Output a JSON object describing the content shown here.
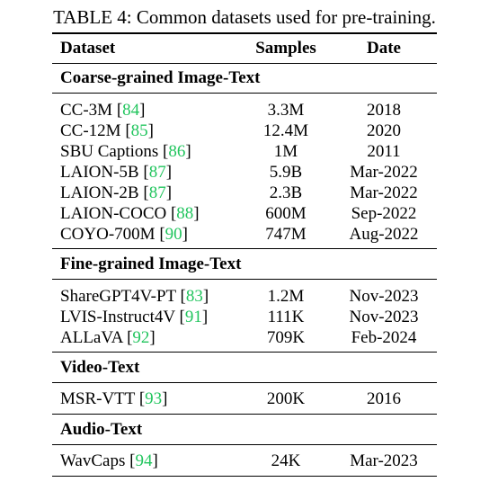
{
  "caption": "TABLE 4: Common datasets used for pre-training.",
  "headers": {
    "dataset": "Dataset",
    "samples": "Samples",
    "date": "Date"
  },
  "sections": [
    {
      "title": "Coarse-grained Image-Text",
      "rows": [
        {
          "name": "CC-3M",
          "ref": "84",
          "samples": "3.3M",
          "date": "2018"
        },
        {
          "name": "CC-12M",
          "ref": "85",
          "samples": "12.4M",
          "date": "2020"
        },
        {
          "name": "SBU Captions",
          "ref": "86",
          "samples": "1M",
          "date": "2011"
        },
        {
          "name": "LAION-5B",
          "ref": "87",
          "samples": "5.9B",
          "date": "Mar-2022"
        },
        {
          "name": "LAION-2B",
          "ref": "87",
          "samples": "2.3B",
          "date": "Mar-2022"
        },
        {
          "name": "LAION-COCO",
          "ref": "88",
          "samples": "600M",
          "date": "Sep-2022"
        },
        {
          "name": "COYO-700M",
          "ref": "90",
          "samples": "747M",
          "date": "Aug-2022"
        }
      ]
    },
    {
      "title": "Fine-grained Image-Text",
      "rows": [
        {
          "name": "ShareGPT4V-PT",
          "ref": "83",
          "samples": "1.2M",
          "date": "Nov-2023"
        },
        {
          "name": "LVIS-Instruct4V",
          "ref": "91",
          "samples": "111K",
          "date": "Nov-2023"
        },
        {
          "name": "ALLaVA",
          "ref": "92",
          "samples": "709K",
          "date": "Feb-2024"
        }
      ]
    },
    {
      "title": "Video-Text",
      "rows": [
        {
          "name": "MSR-VTT",
          "ref": "93",
          "samples": "200K",
          "date": "2016"
        }
      ]
    },
    {
      "title": "Audio-Text",
      "rows": [
        {
          "name": "WavCaps",
          "ref": "94",
          "samples": "24K",
          "date": "Mar-2023"
        }
      ]
    }
  ]
}
